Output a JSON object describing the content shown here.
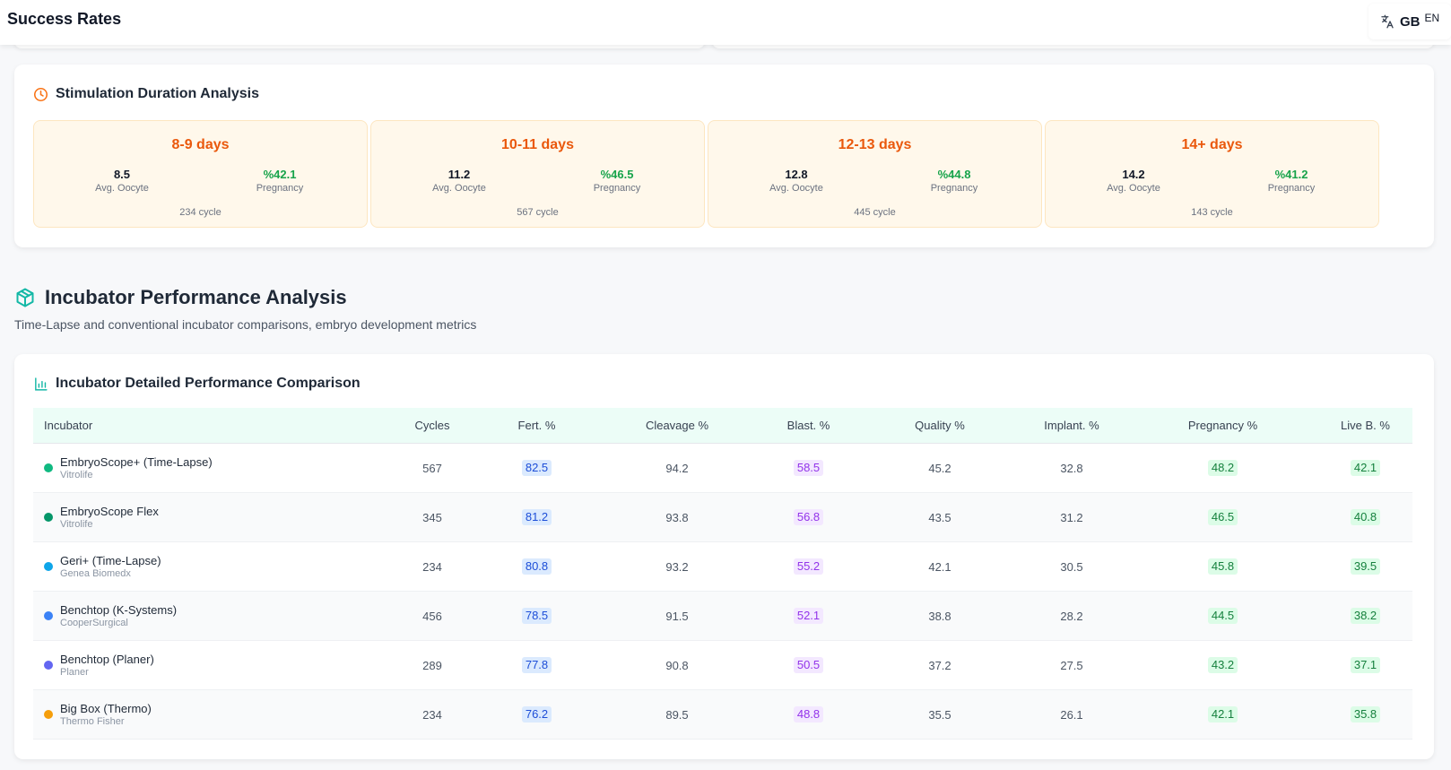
{
  "header": {
    "title": "Success Rates",
    "lang_code": "GB",
    "lang_label": "EN"
  },
  "stimulation": {
    "title": "Stimulation Duration Analysis",
    "items": [
      {
        "range": "8-9 days",
        "oocyte": "8.5",
        "oocyte_label": "Avg. Oocyte",
        "pregnancy": "%42.1",
        "pregnancy_label": "Pregnancy",
        "cycles": "234 cycle"
      },
      {
        "range": "10-11 days",
        "oocyte": "11.2",
        "oocyte_label": "Avg. Oocyte",
        "pregnancy": "%46.5",
        "pregnancy_label": "Pregnancy",
        "cycles": "567 cycle"
      },
      {
        "range": "12-13 days",
        "oocyte": "12.8",
        "oocyte_label": "Avg. Oocyte",
        "pregnancy": "%44.8",
        "pregnancy_label": "Pregnancy",
        "cycles": "445 cycle"
      },
      {
        "range": "14+ days",
        "oocyte": "14.2",
        "oocyte_label": "Avg. Oocyte",
        "pregnancy": "%41.2",
        "pregnancy_label": "Pregnancy",
        "cycles": "143 cycle"
      }
    ]
  },
  "incubator_section": {
    "title": "Incubator Performance Analysis",
    "subtitle": "Time-Lapse and conventional incubator comparisons, embryo development metrics"
  },
  "incubator_table": {
    "title": "Incubator Detailed Performance Comparison",
    "columns": [
      "Incubator",
      "Cycles",
      "Fert. %",
      "Cleavage %",
      "Blast. %",
      "Quality %",
      "Implant. %",
      "Pregnancy %",
      "Live B. %"
    ],
    "rows": [
      {
        "name": "EmbryoScope+ (Time-Lapse)",
        "maker": "Vitrolife",
        "color": "#10b981",
        "cycles": "567",
        "fert": "82.5",
        "cleavage": "94.2",
        "blast": "58.5",
        "quality": "45.2",
        "implant": "32.8",
        "pregnancy": "48.2",
        "live": "42.1"
      },
      {
        "name": "EmbryoScope Flex",
        "maker": "Vitrolife",
        "color": "#059669",
        "cycles": "345",
        "fert": "81.2",
        "cleavage": "93.8",
        "blast": "56.8",
        "quality": "43.5",
        "implant": "31.2",
        "pregnancy": "46.5",
        "live": "40.8"
      },
      {
        "name": "Geri+ (Time-Lapse)",
        "maker": "Genea Biomedx",
        "color": "#0ea5e9",
        "cycles": "234",
        "fert": "80.8",
        "cleavage": "93.2",
        "blast": "55.2",
        "quality": "42.1",
        "implant": "30.5",
        "pregnancy": "45.8",
        "live": "39.5"
      },
      {
        "name": "Benchtop (K-Systems)",
        "maker": "CooperSurgical",
        "color": "#3b82f6",
        "cycles": "456",
        "fert": "78.5",
        "cleavage": "91.5",
        "blast": "52.1",
        "quality": "38.8",
        "implant": "28.2",
        "pregnancy": "44.5",
        "live": "38.2"
      },
      {
        "name": "Benchtop (Planer)",
        "maker": "Planer",
        "color": "#6366f1",
        "cycles": "289",
        "fert": "77.8",
        "cleavage": "90.8",
        "blast": "50.5",
        "quality": "37.2",
        "implant": "27.5",
        "pregnancy": "43.2",
        "live": "37.1"
      },
      {
        "name": "Big Box (Thermo)",
        "maker": "Thermo Fisher",
        "color": "#f59e0b",
        "cycles": "234",
        "fert": "76.2",
        "cleavage": "89.5",
        "blast": "48.8",
        "quality": "35.5",
        "implant": "26.1",
        "pregnancy": "42.1",
        "live": "35.8"
      }
    ]
  },
  "icons": {
    "translate": "translate-icon",
    "clock": "clock-icon",
    "box": "box-icon",
    "bar_chart": "bar-chart-icon"
  },
  "colors": {
    "orange_accent": "#ea580c",
    "teal_accent": "#14b8a6",
    "green_value": "#16a34a"
  }
}
